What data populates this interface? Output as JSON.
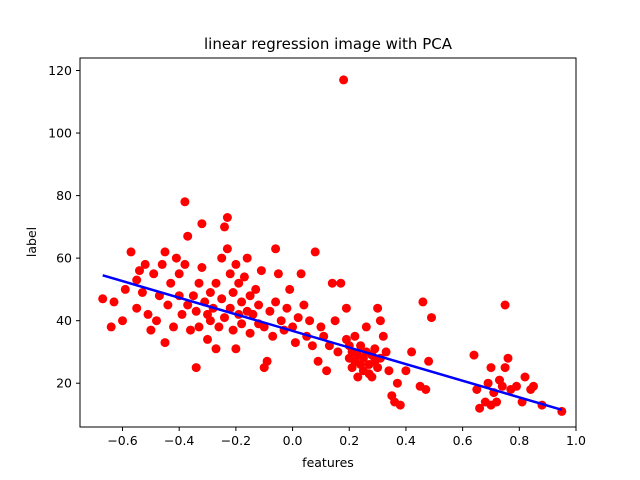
{
  "chart_data": {
    "type": "scatter",
    "title": "linear regression image with PCA",
    "xlabel": "features",
    "ylabel": "label",
    "xlim": [
      -0.75,
      1.0
    ],
    "ylim": [
      6,
      124
    ],
    "xticks": [
      -0.6,
      -0.4,
      -0.2,
      0.0,
      0.2,
      0.4,
      0.6,
      0.8,
      1.0
    ],
    "xtick_labels": [
      "−0.6",
      "−0.4",
      "−0.2",
      "0.0",
      "0.2",
      "0.4",
      "0.6",
      "0.8",
      "1.0"
    ],
    "yticks": [
      20,
      40,
      60,
      80,
      100,
      120
    ],
    "ytick_labels": [
      "20",
      "40",
      "60",
      "80",
      "100",
      "120"
    ],
    "grid": false,
    "colors": {
      "points": "#ff0000",
      "line": "#0000ff"
    },
    "regression_line": {
      "x": [
        -0.67,
        0.95
      ],
      "y": [
        54.5,
        11.5
      ]
    },
    "points": [
      [
        -0.67,
        47
      ],
      [
        -0.64,
        38
      ],
      [
        -0.63,
        46
      ],
      [
        -0.6,
        40
      ],
      [
        -0.59,
        50
      ],
      [
        -0.57,
        62
      ],
      [
        -0.55,
        44
      ],
      [
        -0.55,
        53
      ],
      [
        -0.54,
        56
      ],
      [
        -0.53,
        49
      ],
      [
        -0.52,
        58
      ],
      [
        -0.51,
        42
      ],
      [
        -0.5,
        37
      ],
      [
        -0.49,
        55
      ],
      [
        -0.48,
        40
      ],
      [
        -0.47,
        48
      ],
      [
        -0.46,
        58
      ],
      [
        -0.45,
        62
      ],
      [
        -0.45,
        33
      ],
      [
        -0.44,
        45
      ],
      [
        -0.43,
        52
      ],
      [
        -0.42,
        38
      ],
      [
        -0.41,
        60
      ],
      [
        -0.4,
        48
      ],
      [
        -0.4,
        55
      ],
      [
        -0.39,
        42
      ],
      [
        -0.38,
        78
      ],
      [
        -0.38,
        58
      ],
      [
        -0.37,
        67
      ],
      [
        -0.37,
        45
      ],
      [
        -0.36,
        37
      ],
      [
        -0.35,
        48
      ],
      [
        -0.34,
        25
      ],
      [
        -0.34,
        43
      ],
      [
        -0.33,
        52
      ],
      [
        -0.33,
        38
      ],
      [
        -0.32,
        71
      ],
      [
        -0.32,
        57
      ],
      [
        -0.31,
        46
      ],
      [
        -0.3,
        42
      ],
      [
        -0.3,
        34
      ],
      [
        -0.29,
        49
      ],
      [
        -0.29,
        40
      ],
      [
        -0.28,
        44
      ],
      [
        -0.27,
        52
      ],
      [
        -0.27,
        31
      ],
      [
        -0.26,
        38
      ],
      [
        -0.25,
        47
      ],
      [
        -0.25,
        60
      ],
      [
        -0.24,
        41
      ],
      [
        -0.24,
        70
      ],
      [
        -0.23,
        63
      ],
      [
        -0.23,
        73
      ],
      [
        -0.22,
        44
      ],
      [
        -0.22,
        55
      ],
      [
        -0.21,
        37
      ],
      [
        -0.21,
        49
      ],
      [
        -0.2,
        58
      ],
      [
        -0.2,
        31
      ],
      [
        -0.19,
        42
      ],
      [
        -0.19,
        52
      ],
      [
        -0.18,
        46
      ],
      [
        -0.18,
        39
      ],
      [
        -0.17,
        54
      ],
      [
        -0.16,
        43
      ],
      [
        -0.16,
        60
      ],
      [
        -0.15,
        48
      ],
      [
        -0.15,
        36
      ],
      [
        -0.14,
        42
      ],
      [
        -0.13,
        50
      ],
      [
        -0.12,
        39
      ],
      [
        -0.12,
        45
      ],
      [
        -0.11,
        56
      ],
      [
        -0.1,
        38
      ],
      [
        -0.1,
        25
      ],
      [
        -0.09,
        27
      ],
      [
        -0.08,
        43
      ],
      [
        -0.07,
        35
      ],
      [
        -0.06,
        63
      ],
      [
        -0.06,
        46
      ],
      [
        -0.05,
        55
      ],
      [
        -0.04,
        40
      ],
      [
        -0.03,
        37
      ],
      [
        -0.02,
        44
      ],
      [
        -0.01,
        50
      ],
      [
        0.0,
        38
      ],
      [
        0.01,
        33
      ],
      [
        0.02,
        41
      ],
      [
        0.03,
        55
      ],
      [
        0.04,
        45
      ],
      [
        0.05,
        35
      ],
      [
        0.06,
        40
      ],
      [
        0.07,
        32
      ],
      [
        0.08,
        62
      ],
      [
        0.09,
        27
      ],
      [
        0.1,
        38
      ],
      [
        0.11,
        35
      ],
      [
        0.12,
        24
      ],
      [
        0.13,
        32
      ],
      [
        0.14,
        52
      ],
      [
        0.15,
        40
      ],
      [
        0.16,
        30
      ],
      [
        0.17,
        52
      ],
      [
        0.18,
        117
      ],
      [
        0.19,
        34
      ],
      [
        0.19,
        44
      ],
      [
        0.2,
        28
      ],
      [
        0.2,
        32
      ],
      [
        0.21,
        25
      ],
      [
        0.21,
        30
      ],
      [
        0.22,
        27
      ],
      [
        0.22,
        35
      ],
      [
        0.23,
        22
      ],
      [
        0.23,
        29
      ],
      [
        0.24,
        26
      ],
      [
        0.24,
        32
      ],
      [
        0.25,
        24
      ],
      [
        0.25,
        28
      ],
      [
        0.26,
        30
      ],
      [
        0.26,
        38
      ],
      [
        0.27,
        23
      ],
      [
        0.27,
        26
      ],
      [
        0.28,
        29
      ],
      [
        0.28,
        22
      ],
      [
        0.29,
        31
      ],
      [
        0.29,
        27
      ],
      [
        0.3,
        25
      ],
      [
        0.3,
        44
      ],
      [
        0.31,
        40
      ],
      [
        0.31,
        28
      ],
      [
        0.32,
        35
      ],
      [
        0.33,
        30
      ],
      [
        0.34,
        24
      ],
      [
        0.35,
        16
      ],
      [
        0.36,
        14
      ],
      [
        0.37,
        20
      ],
      [
        0.38,
        13
      ],
      [
        0.4,
        24
      ],
      [
        0.42,
        30
      ],
      [
        0.45,
        19
      ],
      [
        0.46,
        46
      ],
      [
        0.47,
        18
      ],
      [
        0.48,
        27
      ],
      [
        0.49,
        41
      ],
      [
        0.64,
        29
      ],
      [
        0.65,
        18
      ],
      [
        0.66,
        12
      ],
      [
        0.68,
        14
      ],
      [
        0.69,
        20
      ],
      [
        0.7,
        25
      ],
      [
        0.7,
        13
      ],
      [
        0.71,
        17
      ],
      [
        0.72,
        14
      ],
      [
        0.73,
        21
      ],
      [
        0.74,
        19
      ],
      [
        0.75,
        25
      ],
      [
        0.75,
        45
      ],
      [
        0.76,
        28
      ],
      [
        0.77,
        18
      ],
      [
        0.79,
        19
      ],
      [
        0.81,
        14
      ],
      [
        0.82,
        22
      ],
      [
        0.84,
        18
      ],
      [
        0.85,
        19
      ],
      [
        0.88,
        13
      ],
      [
        0.95,
        11
      ]
    ]
  }
}
